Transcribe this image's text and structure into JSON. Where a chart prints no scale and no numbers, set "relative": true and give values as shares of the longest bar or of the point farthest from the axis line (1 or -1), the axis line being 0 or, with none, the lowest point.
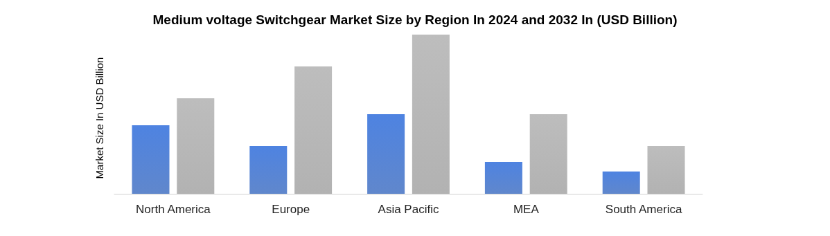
{
  "chart_data": {
    "type": "bar",
    "title": "Medium voltage Switchgear Market Size by Region In 2024 and 2032 In (USD Billion)",
    "ylabel": "Market Size In USD Billion",
    "categories": [
      "North America",
      "Europe",
      "Asia Pacific",
      "MEA",
      "South America"
    ],
    "relative": true,
    "series": [
      {
        "color": "#4472c4",
        "values": [
          0.43,
          0.3,
          0.5,
          0.2,
          0.14
        ]
      },
      {
        "color": "#a5a5a5",
        "values": [
          0.6,
          0.8,
          1,
          0.5,
          0.3
        ]
      }
    ]
  }
}
